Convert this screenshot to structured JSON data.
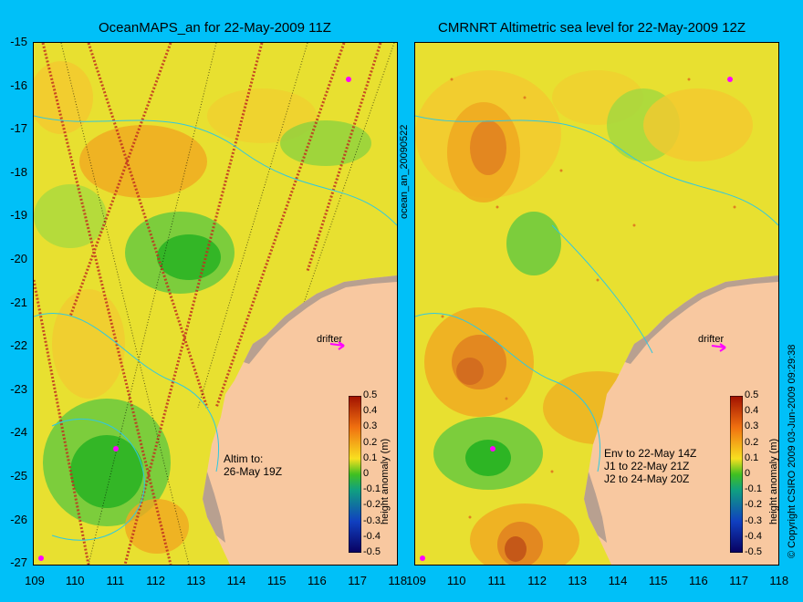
{
  "left_panel": {
    "title": "OceanMAPS_an for 22-May-2009 11Z",
    "annotation_lines": [
      "Altim to:",
      "26-May 19Z"
    ],
    "drifter_label": "drifter"
  },
  "right_panel": {
    "title": "CMRNRT Altimetric sea level  for 22-May-2009 12Z",
    "annotation_lines": [
      "Env to 22-May 14Z",
      "J1 to 22-May 21Z",
      "J2 to 24-May 20Z"
    ],
    "drifter_label": "drifter"
  },
  "side_label_middle": "ocean_an_20090522",
  "side_label_right": "© Copyright CSIRO 2009   03-Jun-2009 09:29:38",
  "axes": {
    "lat_ticks": [
      "-15",
      "-16",
      "-17",
      "-18",
      "-19",
      "-20",
      "-21",
      "-22",
      "-23",
      "-24",
      "-25",
      "-26",
      "-27"
    ],
    "lon_ticks": [
      "109",
      "110",
      "111",
      "112",
      "113",
      "114",
      "115",
      "116",
      "117",
      "118"
    ]
  },
  "colorbar": {
    "label": "height anomaly (m)",
    "ticks": [
      "0.5",
      "0.4",
      "0.3",
      "0.2",
      "0.1",
      "0",
      "-0.1",
      "-0.2",
      "-0.3",
      "-0.4",
      "-0.5"
    ]
  },
  "colors": {
    "background": "#00c0f8",
    "land": "#f8c8a0",
    "shelf": "#b8a090",
    "drifter": "#ff00ff"
  }
}
